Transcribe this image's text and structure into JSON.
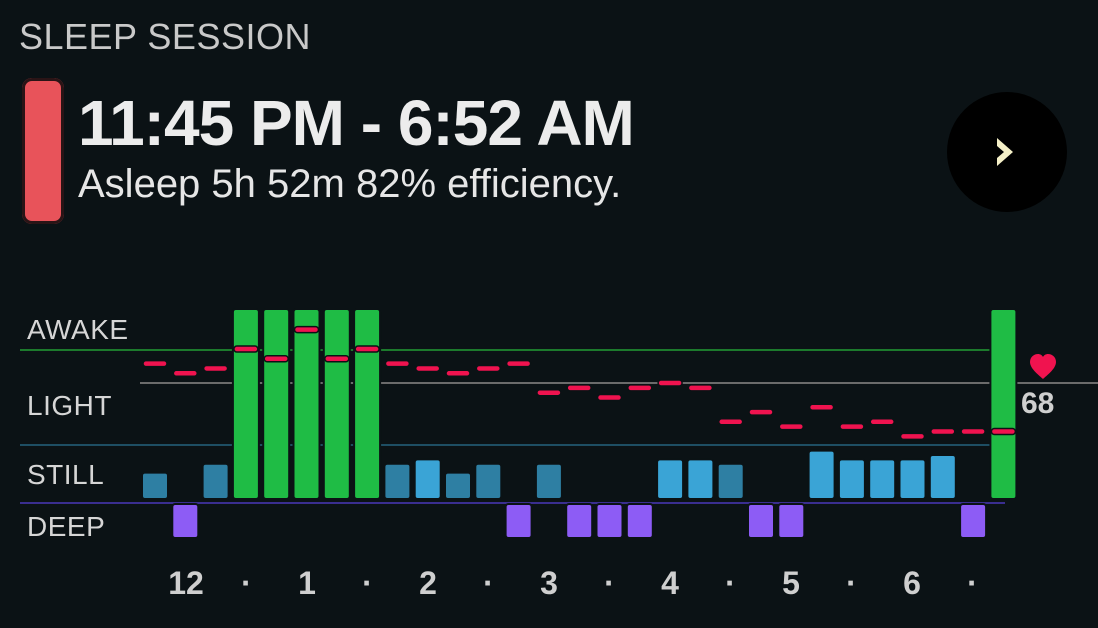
{
  "header": {
    "section_title": "SLEEP SESSION",
    "time_range": "11:45 PM - 6:52 AM",
    "summary": "Asleep 5h 52m 82% efficiency.",
    "accent_color": "#e8535a"
  },
  "nav": {
    "icon": "chevron-right-icon",
    "icon_color": "#f5f0c8"
  },
  "chart_data": {
    "type": "bar",
    "lanes": [
      "AWAKE",
      "LIGHT",
      "STILL",
      "DEEP"
    ],
    "lane_colors": {
      "AWAKE": "#1fbc45",
      "STILL_light": "#3aa4d6",
      "STILL_dark": "#2e7fa3",
      "DEEP": "#8d5cf5"
    },
    "x_tick_labels": [
      "12",
      "·",
      "1",
      "·",
      "2",
      "·",
      "3",
      "·",
      "4",
      "·",
      "5",
      "·",
      "6",
      "·"
    ],
    "segments": [
      {
        "stage": "STILL",
        "level": 0.3,
        "tone": "dark"
      },
      {
        "stage": "DEEP",
        "level": 0.4
      },
      {
        "stage": "STILL",
        "level": 0.4,
        "tone": "dark"
      },
      {
        "stage": "AWAKE",
        "level": 1.0
      },
      {
        "stage": "AWAKE",
        "level": 1.0
      },
      {
        "stage": "AWAKE",
        "level": 1.0
      },
      {
        "stage": "AWAKE",
        "level": 1.0
      },
      {
        "stage": "AWAKE",
        "level": 1.0
      },
      {
        "stage": "STILL",
        "level": 0.4,
        "tone": "dark"
      },
      {
        "stage": "STILL",
        "level": 0.45,
        "tone": "light"
      },
      {
        "stage": "STILL",
        "level": 0.3,
        "tone": "dark"
      },
      {
        "stage": "STILL",
        "level": 0.4,
        "tone": "dark"
      },
      {
        "stage": "DEEP",
        "level": 0.4
      },
      {
        "stage": "STILL",
        "level": 0.4,
        "tone": "dark"
      },
      {
        "stage": "DEEP",
        "level": 0.4
      },
      {
        "stage": "DEEP",
        "level": 0.4
      },
      {
        "stage": "DEEP",
        "level": 0.4
      },
      {
        "stage": "STILL",
        "level": 0.45,
        "tone": "light"
      },
      {
        "stage": "STILL",
        "level": 0.45,
        "tone": "light"
      },
      {
        "stage": "STILL",
        "level": 0.4,
        "tone": "dark"
      },
      {
        "stage": "DEEP",
        "level": 0.4
      },
      {
        "stage": "DEEP",
        "level": 0.4
      },
      {
        "stage": "STILL",
        "level": 0.55,
        "tone": "light"
      },
      {
        "stage": "STILL",
        "level": 0.45,
        "tone": "light"
      },
      {
        "stage": "STILL",
        "level": 0.45,
        "tone": "light"
      },
      {
        "stage": "STILL",
        "level": 0.45,
        "tone": "light"
      },
      {
        "stage": "STILL",
        "level": 0.5,
        "tone": "light"
      },
      {
        "stage": "DEEP",
        "level": 0.4
      },
      {
        "stage": "AWAKE",
        "level": 1.0
      }
    ],
    "heart_rate_series": {
      "color": "#f0134f",
      "values": [
        70,
        69,
        69.5,
        71.5,
        70.5,
        73.5,
        70.5,
        71.5,
        70,
        69.5,
        69,
        69.5,
        70,
        67,
        67.5,
        66.5,
        67.5,
        68,
        67.5,
        64,
        65,
        63.5,
        65.5,
        63.5,
        64,
        62.5,
        63,
        63,
        63
      ]
    },
    "heart_rate_current": "68",
    "heart_icon": "heart-icon"
  }
}
